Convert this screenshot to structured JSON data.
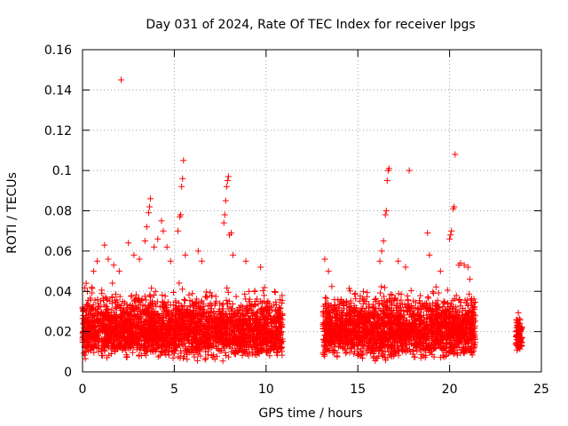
{
  "chart_data": {
    "type": "scatter",
    "title": "Day 031 of 2024, Rate Of TEC Index for receiver lpgs",
    "xlabel": "GPS time / hours",
    "ylabel": "ROTI / TECUs",
    "xlim": [
      0,
      25
    ],
    "ylim": [
      0,
      0.16
    ],
    "x_ticks": [
      0,
      5,
      10,
      15,
      20,
      25
    ],
    "x_tick_labels": [
      "0",
      "5",
      "10",
      "15",
      "20",
      "25"
    ],
    "y_ticks": [
      0,
      0.02,
      0.04,
      0.06,
      0.08,
      0.1,
      0.12,
      0.14,
      0.16
    ],
    "y_tick_labels": [
      "0",
      "0.02",
      "0.04",
      "0.06",
      "0.08",
      "0.1",
      "0.12",
      "0.14",
      "0.16"
    ],
    "grid": true,
    "marker": "+",
    "marker_color": "#ff0000",
    "series": [
      {
        "name": "ROTI",
        "segments": [
          {
            "x_start": 0.0,
            "x_end": 10.9,
            "typical_min": 0.005,
            "typical_max": 0.045
          },
          {
            "x_start": 13.1,
            "x_end": 21.4,
            "typical_min": 0.005,
            "typical_max": 0.045
          },
          {
            "x_start": 23.6,
            "x_end": 23.95,
            "typical_min": 0.008,
            "typical_max": 0.033
          }
        ],
        "outliers": [
          {
            "x": 0.2,
            "y": 0.044
          },
          {
            "x": 0.5,
            "y": 0.042
          },
          {
            "x": 0.6,
            "y": 0.05
          },
          {
            "x": 0.8,
            "y": 0.055
          },
          {
            "x": 1.2,
            "y": 0.063
          },
          {
            "x": 1.4,
            "y": 0.056
          },
          {
            "x": 1.7,
            "y": 0.053
          },
          {
            "x": 2.0,
            "y": 0.05
          },
          {
            "x": 2.1,
            "y": 0.145
          },
          {
            "x": 2.5,
            "y": 0.064
          },
          {
            "x": 2.8,
            "y": 0.058
          },
          {
            "x": 3.1,
            "y": 0.056
          },
          {
            "x": 3.4,
            "y": 0.065
          },
          {
            "x": 3.5,
            "y": 0.072
          },
          {
            "x": 3.6,
            "y": 0.079
          },
          {
            "x": 3.65,
            "y": 0.082
          },
          {
            "x": 3.7,
            "y": 0.086
          },
          {
            "x": 3.9,
            "y": 0.062
          },
          {
            "x": 4.1,
            "y": 0.066
          },
          {
            "x": 4.3,
            "y": 0.075
          },
          {
            "x": 4.4,
            "y": 0.07
          },
          {
            "x": 4.6,
            "y": 0.062
          },
          {
            "x": 4.8,
            "y": 0.055
          },
          {
            "x": 5.2,
            "y": 0.07
          },
          {
            "x": 5.3,
            "y": 0.077
          },
          {
            "x": 5.35,
            "y": 0.078
          },
          {
            "x": 5.4,
            "y": 0.092
          },
          {
            "x": 5.45,
            "y": 0.096
          },
          {
            "x": 5.5,
            "y": 0.105
          },
          {
            "x": 5.6,
            "y": 0.058
          },
          {
            "x": 6.3,
            "y": 0.06
          },
          {
            "x": 6.5,
            "y": 0.055
          },
          {
            "x": 7.7,
            "y": 0.074
          },
          {
            "x": 7.75,
            "y": 0.078
          },
          {
            "x": 7.8,
            "y": 0.085
          },
          {
            "x": 7.85,
            "y": 0.092
          },
          {
            "x": 7.9,
            "y": 0.095
          },
          {
            "x": 7.95,
            "y": 0.097
          },
          {
            "x": 8.0,
            "y": 0.068
          },
          {
            "x": 8.1,
            "y": 0.069
          },
          {
            "x": 8.2,
            "y": 0.058
          },
          {
            "x": 8.9,
            "y": 0.055
          },
          {
            "x": 9.7,
            "y": 0.052
          },
          {
            "x": 13.2,
            "y": 0.056
          },
          {
            "x": 13.4,
            "y": 0.05
          },
          {
            "x": 16.2,
            "y": 0.055
          },
          {
            "x": 16.3,
            "y": 0.06
          },
          {
            "x": 16.4,
            "y": 0.065
          },
          {
            "x": 16.5,
            "y": 0.078
          },
          {
            "x": 16.55,
            "y": 0.08
          },
          {
            "x": 16.6,
            "y": 0.095
          },
          {
            "x": 16.65,
            "y": 0.1
          },
          {
            "x": 16.7,
            "y": 0.101
          },
          {
            "x": 17.2,
            "y": 0.055
          },
          {
            "x": 17.6,
            "y": 0.052
          },
          {
            "x": 17.8,
            "y": 0.1
          },
          {
            "x": 18.8,
            "y": 0.069
          },
          {
            "x": 18.9,
            "y": 0.058
          },
          {
            "x": 19.5,
            "y": 0.05
          },
          {
            "x": 20.0,
            "y": 0.066
          },
          {
            "x": 20.05,
            "y": 0.068
          },
          {
            "x": 20.1,
            "y": 0.07
          },
          {
            "x": 20.2,
            "y": 0.081
          },
          {
            "x": 20.25,
            "y": 0.082
          },
          {
            "x": 20.3,
            "y": 0.108
          },
          {
            "x": 20.5,
            "y": 0.053
          },
          {
            "x": 20.6,
            "y": 0.054
          },
          {
            "x": 20.8,
            "y": 0.053
          },
          {
            "x": 21.0,
            "y": 0.052
          },
          {
            "x": 21.1,
            "y": 0.046
          }
        ]
      }
    ]
  }
}
